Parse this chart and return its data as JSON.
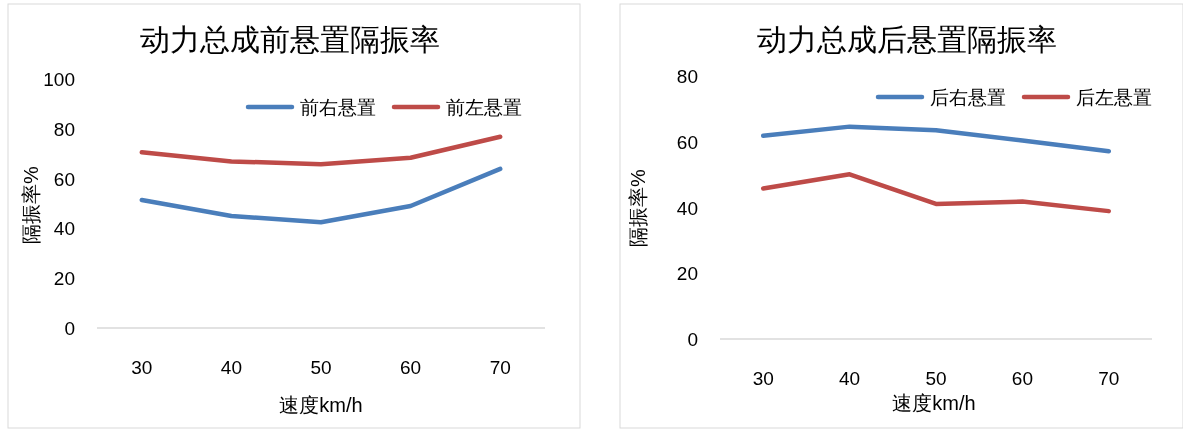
{
  "chart_data": [
    {
      "type": "line",
      "title": "动力总成前悬置隔振率",
      "xlabel": "速度km/h",
      "ylabel": "隔振率%",
      "categories": [
        "30",
        "40",
        "50",
        "60",
        "70"
      ],
      "ylim": [
        0,
        100
      ],
      "yticks": [
        0,
        20,
        40,
        60,
        80,
        100
      ],
      "grid": false,
      "legend": "top right",
      "marker": "none",
      "line_style": "solid",
      "series": [
        {
          "name": "前右悬置",
          "color": "#4a7ebb",
          "values": [
            51.4,
            45.0,
            42.5,
            49.0,
            63.9
          ]
        },
        {
          "name": "前左悬置",
          "color": "#be4b48",
          "values": [
            70.6,
            66.9,
            65.8,
            68.4,
            76.8
          ]
        }
      ]
    },
    {
      "type": "line",
      "title": "动力总成后悬置隔振率",
      "xlabel": "速度km/h",
      "ylabel": "隔振率%",
      "categories": [
        "30",
        "40",
        "50",
        "60",
        "70"
      ],
      "ylim": [
        0,
        80
      ],
      "yticks": [
        0,
        20,
        40,
        60,
        80
      ],
      "grid": false,
      "legend": "top right",
      "marker": "none",
      "line_style": "solid",
      "series": [
        {
          "name": "后右悬置",
          "color": "#4a7ebb",
          "values": [
            61.8,
            64.6,
            63.5,
            60.4,
            57.1
          ]
        },
        {
          "name": "后左悬置",
          "color": "#be4b48",
          "values": [
            45.8,
            50.1,
            41.1,
            41.8,
            38.9
          ]
        }
      ]
    }
  ]
}
